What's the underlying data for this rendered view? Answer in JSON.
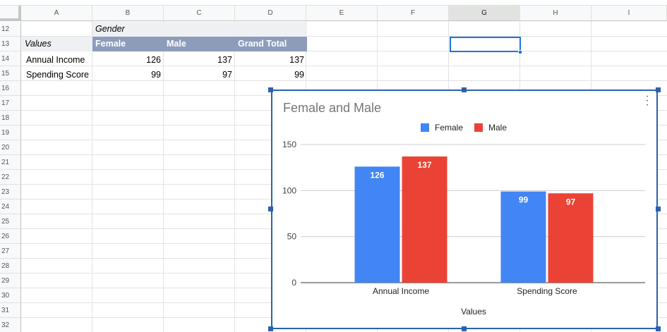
{
  "columns": [
    "A",
    "B",
    "C",
    "D",
    "E",
    "F",
    "G",
    "H",
    "I"
  ],
  "selected_column": "G",
  "rows": [
    "12",
    "13",
    "14",
    "15",
    "16",
    "17",
    "18",
    "19",
    "20",
    "21",
    "22",
    "23",
    "24",
    "25",
    "26",
    "27",
    "28",
    "29",
    "30",
    "31",
    "32"
  ],
  "pivot": {
    "gender_label": "Gender",
    "values_label": "Values",
    "headers": [
      "Female",
      "Male",
      "Grand Total"
    ],
    "rows": [
      {
        "label": "Annual Income",
        "female": "126",
        "male": "137",
        "total": "137"
      },
      {
        "label": "Spending Score",
        "female": "99",
        "male": "97",
        "total": "99"
      }
    ]
  },
  "chart_data": {
    "type": "bar",
    "title": "Female and Male",
    "xlabel": "Values",
    "ylabel": "",
    "categories": [
      "Annual Income",
      "Spending Score"
    ],
    "series": [
      {
        "name": "Female",
        "values": [
          126,
          99
        ],
        "color": "#4285f4"
      },
      {
        "name": "Male",
        "values": [
          137,
          97
        ],
        "color": "#ea4335"
      }
    ],
    "ylim": [
      0,
      150
    ],
    "yticks": [
      0,
      50,
      100,
      150
    ],
    "grid": true,
    "legend": "top-center"
  },
  "colors": {
    "pivot_header": "#8e9cbb",
    "selection": "#1a73e8",
    "chart_border": "#2a62ad"
  },
  "icons": {
    "chart_menu": "more-vert-icon"
  }
}
